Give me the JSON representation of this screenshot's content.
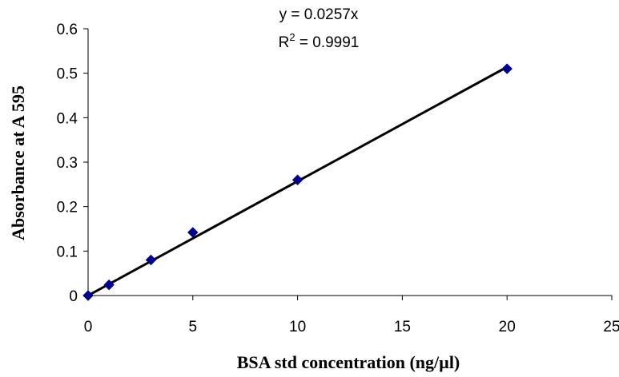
{
  "chart_data": {
    "type": "scatter",
    "title": "",
    "xlabel": "BSA std concentration (ng/µl)",
    "ylabel": "Absorbance at A 595",
    "xlim": [
      0,
      25
    ],
    "ylim": [
      0,
      0.6
    ],
    "x_ticks": [
      "0",
      "5",
      "10",
      "15",
      "20",
      "25"
    ],
    "y_ticks": [
      "0",
      "0.1",
      "0.2",
      "0.3",
      "0.4",
      "0.5",
      "0.6"
    ],
    "grid": false,
    "legend": "none",
    "series": [
      {
        "points": [
          {
            "x": 0,
            "y": 0
          },
          {
            "x": 1,
            "y": 0.024
          },
          {
            "x": 3,
            "y": 0.08
          },
          {
            "x": 5,
            "y": 0.142
          },
          {
            "x": 10,
            "y": 0.26
          },
          {
            "x": 20,
            "y": 0.51
          }
        ],
        "marker_color": "#00008B"
      }
    ],
    "trendline": {
      "type": "linear",
      "slope": 0.0257,
      "intercept": 0,
      "x_range": [
        0,
        20
      ],
      "color": "#000000",
      "equation": "y = 0.0257x",
      "r2_prefix": "R",
      "r2_sup": "2",
      "r2_value": " = 0.9991"
    }
  }
}
